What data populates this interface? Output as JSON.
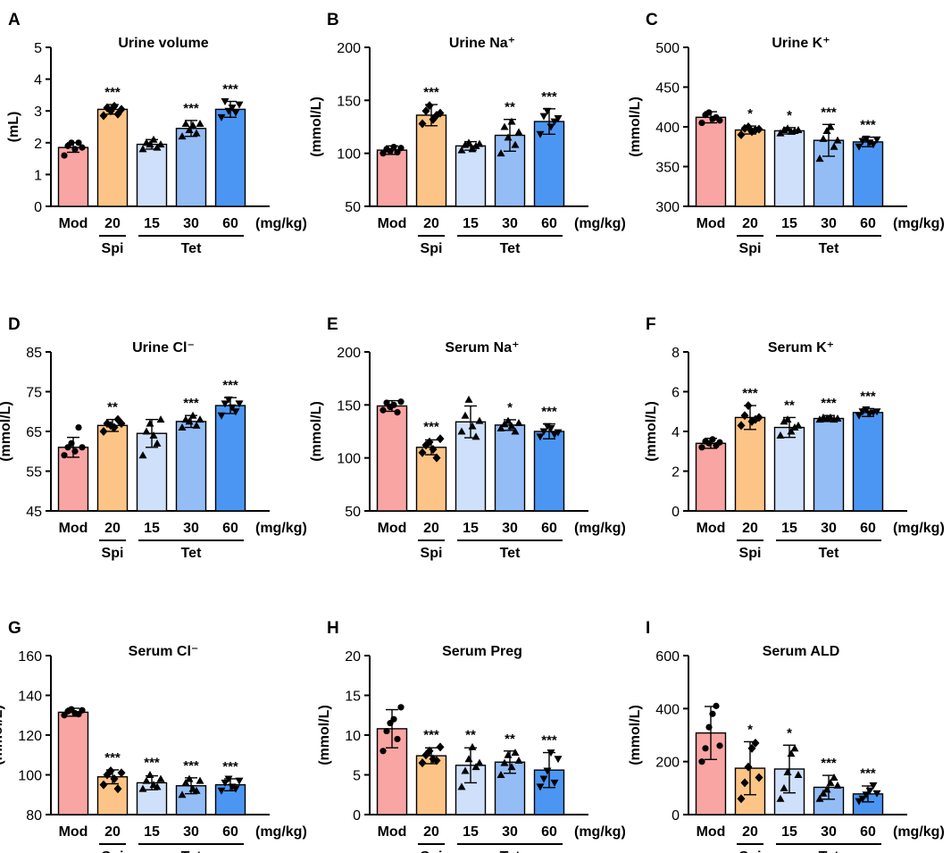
{
  "figure": {
    "x_unit": "(mg/kg)",
    "group_labels": [
      "Spi",
      "Tet"
    ],
    "colors": [
      "#f8a5a3",
      "#fcc587",
      "#cfe0fa",
      "#94bdf6",
      "#4c96f3"
    ]
  },
  "chart_data": [
    {
      "panel": "A",
      "type": "bar",
      "title": "Urine volume",
      "ylabel": "(mL)",
      "categories": [
        "Mod",
        "20",
        "15",
        "30",
        "60"
      ],
      "values": [
        1.85,
        3.05,
        1.95,
        2.45,
        3.05
      ],
      "errors": [
        0.15,
        0.15,
        0.15,
        0.25,
        0.25
      ],
      "significance": [
        "",
        "***",
        "",
        "***",
        "***"
      ],
      "ylim": [
        0,
        5
      ],
      "yticks": [
        0,
        1,
        2,
        3,
        4,
        5
      ],
      "points": [
        [
          1.6,
          1.9,
          2.0,
          1.8,
          2.0,
          1.85
        ],
        [
          2.85,
          3.1,
          3.0,
          3.15,
          2.9,
          3.05
        ],
        [
          1.8,
          2.0,
          1.95,
          2.1,
          1.85,
          1.95
        ],
        [
          2.2,
          2.6,
          2.4,
          2.55,
          2.3,
          2.6
        ],
        [
          2.8,
          3.3,
          3.0,
          3.1,
          2.95,
          3.2
        ]
      ]
    },
    {
      "panel": "B",
      "type": "bar",
      "title": "Urine Na⁺",
      "ylabel": "(mmol/L)",
      "categories": [
        "Mod",
        "20",
        "15",
        "30",
        "60"
      ],
      "values": [
        103,
        136,
        107,
        117,
        130
      ],
      "errors": [
        4,
        10,
        4,
        15,
        12
      ],
      "significance": [
        "",
        "***",
        "",
        "**",
        "***"
      ],
      "ylim": [
        50,
        200
      ],
      "yticks": [
        50,
        100,
        150,
        200
      ],
      "points": [
        [
          100,
          104,
          102,
          106,
          101,
          105
        ],
        [
          128,
          140,
          145,
          132,
          136,
          138
        ],
        [
          103,
          108,
          110,
          104,
          107,
          109
        ],
        [
          100,
          125,
          115,
          130,
          108,
          120
        ],
        [
          118,
          135,
          140,
          125,
          130,
          133
        ]
      ]
    },
    {
      "panel": "C",
      "type": "bar",
      "title": "Urine K⁺",
      "ylabel": "(mmol/L)",
      "categories": [
        "Mod",
        "20",
        "15",
        "30",
        "60"
      ],
      "values": [
        412,
        396,
        395,
        383,
        381
      ],
      "errors": [
        7,
        5,
        4,
        20,
        6
      ],
      "significance": [
        "",
        "*",
        "*",
        "***",
        "***"
      ],
      "ylim": [
        300,
        500
      ],
      "yticks": [
        300,
        350,
        400,
        450,
        500
      ],
      "points": [
        [
          405,
          415,
          418,
          410,
          412,
          408
        ],
        [
          390,
          398,
          400,
          394,
          396,
          397
        ],
        [
          392,
          396,
          398,
          394,
          395,
          396
        ],
        [
          360,
          385,
          395,
          400,
          375,
          383
        ],
        [
          375,
          382,
          385,
          380,
          378,
          384
        ]
      ]
    },
    {
      "panel": "D",
      "type": "bar",
      "title": "Urine Cl⁻",
      "ylabel": "(mmol/L)",
      "categories": [
        "Mod",
        "20",
        "15",
        "30",
        "60"
      ],
      "values": [
        61,
        66.5,
        64.5,
        67.5,
        71.5
      ],
      "errors": [
        2.5,
        1.5,
        3.5,
        1.5,
        2
      ],
      "significance": [
        "",
        "**",
        "",
        "***",
        "***"
      ],
      "ylim": [
        45,
        85
      ],
      "yticks": [
        45,
        55,
        65,
        75,
        85
      ],
      "points": [
        [
          59,
          61,
          62,
          60,
          66,
          61
        ],
        [
          65,
          67,
          66.5,
          66,
          68,
          67
        ],
        [
          59,
          65,
          67,
          64,
          62,
          68
        ],
        [
          66,
          68,
          67.5,
          69,
          66.5,
          68
        ],
        [
          69,
          72,
          73,
          71,
          70,
          72
        ]
      ]
    },
    {
      "panel": "E",
      "type": "bar",
      "title": "Serum Na⁺",
      "ylabel": "(mmol/L)",
      "categories": [
        "Mod",
        "20",
        "15",
        "30",
        "60"
      ],
      "values": [
        149,
        110,
        134,
        131,
        125
      ],
      "errors": [
        5,
        7,
        15,
        5,
        7
      ],
      "significance": [
        "",
        "***",
        "",
        "*",
        "***"
      ],
      "ylim": [
        50,
        200
      ],
      "yticks": [
        50,
        100,
        150,
        200
      ],
      "points": [
        [
          145,
          152,
          148,
          150,
          143,
          153
        ],
        [
          105,
          112,
          115,
          108,
          100,
          118
        ],
        [
          125,
          140,
          155,
          130,
          120,
          135
        ],
        [
          128,
          132,
          135,
          130,
          125,
          133
        ],
        [
          120,
          125,
          130,
          128,
          122,
          124
        ]
      ]
    },
    {
      "panel": "F",
      "type": "bar",
      "title": "Serum K⁺",
      "ylabel": "(mmol/L)",
      "categories": [
        "Mod",
        "20",
        "15",
        "30",
        "60"
      ],
      "values": [
        3.4,
        4.7,
        4.2,
        4.65,
        4.95
      ],
      "errors": [
        0.25,
        0.6,
        0.5,
        0.15,
        0.2
      ],
      "significance": [
        "",
        "***",
        "**",
        "***",
        "***"
      ],
      "ylim": [
        0,
        8
      ],
      "yticks": [
        0,
        2,
        4,
        6,
        8
      ],
      "points": [
        [
          3.2,
          3.5,
          3.4,
          3.6,
          3.3,
          3.45
        ],
        [
          4.3,
          4.8,
          5.3,
          4.5,
          4.6,
          4.7
        ],
        [
          3.8,
          4.5,
          4.6,
          4.0,
          4.2,
          4.3
        ],
        [
          4.6,
          4.7,
          4.65,
          4.7,
          4.6,
          4.65
        ],
        [
          4.8,
          5.0,
          5.1,
          4.9,
          4.95,
          5.0
        ]
      ]
    },
    {
      "panel": "G",
      "type": "bar",
      "title": "Serum Cl⁻",
      "ylabel": "(mmol/L)",
      "categories": [
        "Mod",
        "20",
        "15",
        "30",
        "60"
      ],
      "values": [
        131.5,
        99,
        96,
        94.5,
        95
      ],
      "errors": [
        2,
        3.5,
        3.5,
        4,
        3
      ],
      "significance": [
        "",
        "***",
        "***",
        "***",
        "***"
      ],
      "ylim": [
        80,
        160
      ],
      "yticks": [
        80,
        100,
        120,
        140,
        160
      ],
      "points": [
        [
          130,
          132,
          133,
          131,
          130.5,
          132.5
        ],
        [
          95,
          100,
          102,
          98,
          93,
          101
        ],
        [
          93,
          97,
          100,
          95,
          94,
          98
        ],
        [
          90,
          96,
          98,
          93,
          92,
          97
        ],
        [
          92,
          96,
          98,
          94,
          93,
          97
        ]
      ]
    },
    {
      "panel": "H",
      "type": "bar",
      "title": "Serum Preg",
      "ylabel": "(mmol/L)",
      "categories": [
        "Mod",
        "20",
        "15",
        "30",
        "60"
      ],
      "values": [
        10.8,
        7.4,
        6.2,
        6.6,
        5.6
      ],
      "errors": [
        2.4,
        1,
        2.2,
        1.4,
        2.2
      ],
      "significance": [
        "",
        "***",
        "**",
        "**",
        "***"
      ],
      "ylim": [
        0,
        20
      ],
      "yticks": [
        0,
        5,
        10,
        15,
        20
      ],
      "points": [
        [
          8,
          10.5,
          11.5,
          12,
          9.5,
          13.5
        ],
        [
          6.5,
          7.5,
          8,
          7,
          6.8,
          8.5
        ],
        [
          3.5,
          5.5,
          7,
          8.5,
          6,
          6.5
        ],
        [
          5,
          6.5,
          7.5,
          6,
          7.8,
          6.8
        ],
        [
          3.5,
          4.5,
          5.5,
          7.8,
          4,
          7
        ]
      ]
    },
    {
      "panel": "I",
      "type": "bar",
      "title": "Serum ALD",
      "ylabel": "(mmol/L)",
      "categories": [
        "Mod",
        "20",
        "15",
        "30",
        "60"
      ],
      "values": [
        308,
        175,
        172,
        103,
        78
      ],
      "errors": [
        100,
        100,
        90,
        45,
        30
      ],
      "significance": [
        "",
        "*",
        "*",
        "***",
        "***"
      ],
      "ylim": [
        0,
        600
      ],
      "yticks": [
        0,
        200,
        400,
        600
      ],
      "points": [
        [
          200,
          250,
          330,
          380,
          410,
          260
        ],
        [
          60,
          120,
          180,
          250,
          270,
          140
        ],
        [
          60,
          100,
          160,
          230,
          250,
          150
        ],
        [
          60,
          80,
          95,
          120,
          140,
          110
        ],
        [
          50,
          60,
          75,
          90,
          110,
          80
        ]
      ]
    }
  ]
}
